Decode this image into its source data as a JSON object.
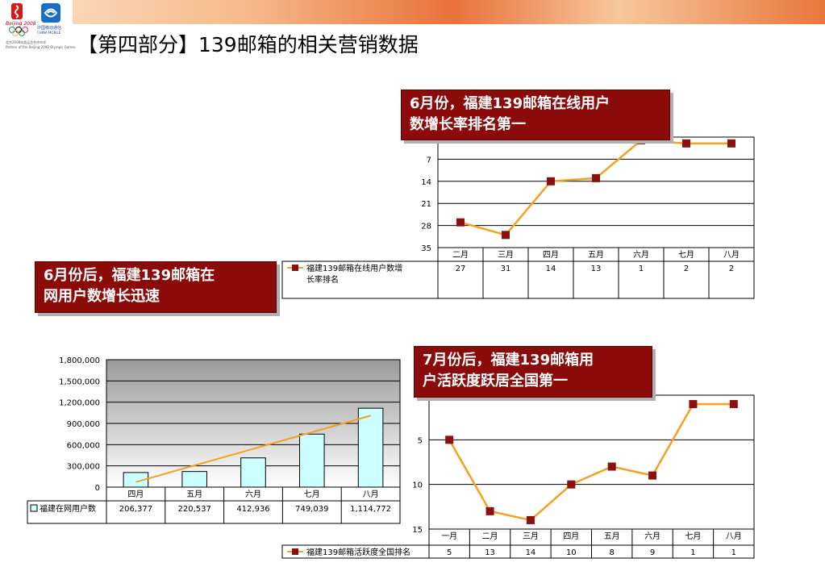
{
  "header": {
    "olympic_text": "Beijing 2008",
    "cm_text1": "中国移动通信",
    "cm_text2": "CHINA MOBILE",
    "tiny1": "北京2008年奥运会合作伙伴",
    "tiny2": "Partner of the Beijing 2008 Olympic Games"
  },
  "title": "【第四部分】139邮箱的相关营销数据",
  "callouts": {
    "c1": [
      "6月份，福建139邮箱在线用户",
      "数增长率排名第一"
    ],
    "c2": [
      "6月份后，福建139邮箱在",
      "网用户数增长迅速"
    ],
    "c3": [
      "7月份后，福建139邮箱用",
      "户活跃度跃居全国第一"
    ]
  },
  "colors": {
    "line": "#f5a01e",
    "marker": "#8b1010",
    "bar": "#ccffff",
    "callout": "#8b0a0a"
  },
  "chart_data": [
    {
      "type": "line",
      "categories": [
        "二月",
        "三月",
        "四月",
        "五月",
        "六月",
        "七月",
        "八月"
      ],
      "series": [
        {
          "name": "福建139邮箱在线用户数增长率排名",
          "values": [
            27,
            31,
            14,
            13,
            1,
            2,
            2
          ]
        }
      ],
      "yticks": [
        "7",
        "14",
        "21",
        "28",
        "35"
      ],
      "ylim": [
        0,
        35
      ],
      "reversed": true,
      "legend": "bottom-table"
    },
    {
      "type": "bar",
      "categories": [
        "四月",
        "五月",
        "六月",
        "七月",
        "八月"
      ],
      "series": [
        {
          "name": "福建在网用户数",
          "values": [
            206377,
            220537,
            412936,
            749039,
            1114772
          ]
        }
      ],
      "value_labels": [
        "206,377",
        "220,537",
        "412,936",
        "749,039",
        "1,114,772"
      ],
      "yticks": [
        "0",
        "300,000",
        "600,000",
        "900,000",
        "1,200,000",
        "1,500,000",
        "1,800,000"
      ],
      "ylim": [
        0,
        1800000
      ],
      "trendline": true,
      "legend": "bottom-table"
    },
    {
      "type": "line",
      "categories": [
        "一月",
        "二月",
        "三月",
        "四月",
        "五月",
        "六月",
        "七月",
        "八月"
      ],
      "series": [
        {
          "name": "福建139邮箱活跃度全国排名",
          "values": [
            5,
            13,
            14,
            10,
            8,
            9,
            1,
            1
          ]
        }
      ],
      "yticks": [
        "5",
        "10",
        "15"
      ],
      "ylim": [
        0,
        15
      ],
      "reversed": true,
      "legend": "bottom-table"
    }
  ]
}
